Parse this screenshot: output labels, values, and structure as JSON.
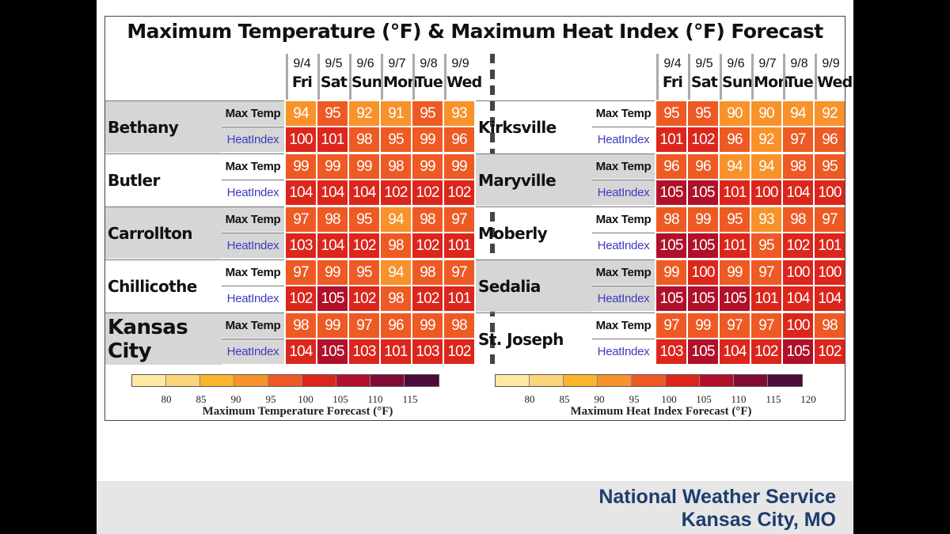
{
  "title": "Maximum Temperature (°F) & Maximum Heat Index (°F) Forecast",
  "dates": [
    {
      "date": "9/4",
      "day": "Fri"
    },
    {
      "date": "9/5",
      "day": "Sat"
    },
    {
      "date": "9/6",
      "day": "Sun"
    },
    {
      "date": "9/7",
      "day": "Mon"
    },
    {
      "date": "9/8",
      "day": "Tue"
    },
    {
      "date": "9/9",
      "day": "Wed"
    }
  ],
  "row_labels": {
    "max_temp": "Max Temp",
    "heat_index": "HeatIndex"
  },
  "left_cities": [
    {
      "name": "Bethany",
      "max_temp": [
        94,
        95,
        92,
        91,
        95,
        93
      ],
      "heat_index": [
        100,
        101,
        98,
        95,
        99,
        96
      ]
    },
    {
      "name": "Butler",
      "max_temp": [
        99,
        99,
        99,
        98,
        99,
        99
      ],
      "heat_index": [
        104,
        104,
        104,
        102,
        102,
        102
      ]
    },
    {
      "name": "Carrollton",
      "max_temp": [
        97,
        98,
        95,
        94,
        98,
        97
      ],
      "heat_index": [
        103,
        104,
        102,
        98,
        102,
        101
      ]
    },
    {
      "name": "Chillicothe",
      "max_temp": [
        97,
        99,
        95,
        94,
        98,
        97
      ],
      "heat_index": [
        102,
        105,
        102,
        98,
        102,
        101
      ]
    },
    {
      "name": "Kansas City",
      "max_temp": [
        98,
        99,
        97,
        96,
        99,
        98
      ],
      "heat_index": [
        104,
        105,
        103,
        101,
        103,
        102
      ]
    }
  ],
  "right_cities": [
    {
      "name": "Kirksville",
      "max_temp": [
        95,
        95,
        90,
        90,
        94,
        92
      ],
      "heat_index": [
        101,
        102,
        96,
        92,
        97,
        96
      ]
    },
    {
      "name": "Maryville",
      "max_temp": [
        96,
        96,
        94,
        94,
        98,
        95
      ],
      "heat_index": [
        105,
        105,
        101,
        100,
        104,
        100
      ]
    },
    {
      "name": "Moberly",
      "max_temp": [
        98,
        99,
        95,
        93,
        98,
        97
      ],
      "heat_index": [
        105,
        105,
        101,
        95,
        102,
        101
      ]
    },
    {
      "name": "Sedalia",
      "max_temp": [
        99,
        100,
        99,
        97,
        100,
        100
      ],
      "heat_index": [
        105,
        105,
        105,
        101,
        104,
        104
      ]
    },
    {
      "name": "St. Joseph",
      "max_temp": [
        97,
        99,
        97,
        97,
        100,
        98
      ],
      "heat_index": [
        103,
        105,
        104,
        102,
        105,
        102
      ]
    }
  ],
  "legend_temp": {
    "label": "Maximum Temperature Forecast (°F)",
    "ticks": [
      "80",
      "85",
      "90",
      "95",
      "100",
      "105",
      "110",
      "115"
    ]
  },
  "legend_heat": {
    "label": "Maximum Heat Index Forecast (°F)",
    "ticks": [
      "80",
      "85",
      "90",
      "95",
      "100",
      "105",
      "110",
      "115",
      "120"
    ]
  },
  "color_scale": {
    "bins": [
      {
        "max": 80,
        "color": "#fde9a2"
      },
      {
        "max": 85,
        "color": "#fcd57a"
      },
      {
        "max": 90,
        "color": "#fbb42b"
      },
      {
        "max": 95,
        "color": "#f8922b"
      },
      {
        "max": 100,
        "color": "#ee5a24"
      },
      {
        "max": 105,
        "color": "#dc261c"
      },
      {
        "max": 110,
        "color": "#b0102a"
      },
      {
        "max": 115,
        "color": "#820b36"
      },
      {
        "max": 120,
        "color": "#4b0a3c"
      },
      {
        "max": 999,
        "color": "#2a0a2a"
      }
    ]
  },
  "footer": {
    "line1": "National Weather Service",
    "line2": "Kansas City, MO"
  }
}
